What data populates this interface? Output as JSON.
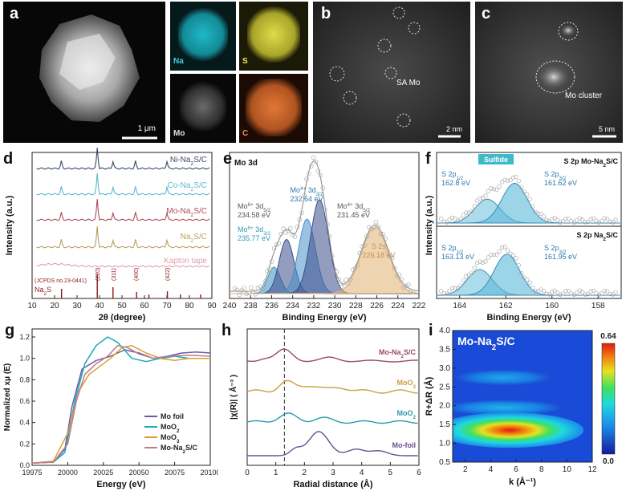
{
  "panels": {
    "a": {
      "label": "a",
      "scale_bar": "1 μm",
      "maps": [
        {
          "element": "Na",
          "color": "#1aa3b0"
        },
        {
          "element": "S",
          "color": "#c9c43a"
        },
        {
          "element": "Mo",
          "color": "#cfcfcf"
        },
        {
          "element": "C",
          "color": "#d06a2a"
        }
      ]
    },
    "b": {
      "label": "b",
      "annotation": "SA Mo",
      "scale_bar": "2 nm"
    },
    "c": {
      "label": "c",
      "annotation": "Mo cluster",
      "scale_bar": "5 nm"
    },
    "d": {
      "label": "d"
    },
    "e": {
      "label": "e"
    },
    "f": {
      "label": "f"
    },
    "g": {
      "label": "g"
    },
    "h": {
      "label": "h"
    },
    "i": {
      "label": "i"
    }
  },
  "chart_data": [
    {
      "id": "d",
      "type": "line",
      "title": "",
      "xlabel": "2θ (degree)",
      "ylabel": "Intensity (a.u.)",
      "xlim": [
        10,
        90
      ],
      "xticks": [
        10,
        20,
        30,
        40,
        50,
        60,
        70,
        80,
        90
      ],
      "series": [
        {
          "name": "Ni-Na2S/C",
          "color": "#3a4a6a",
          "offset": 4
        },
        {
          "name": "Co-Na2S/C",
          "color": "#5bb8cc",
          "offset": 3
        },
        {
          "name": "Mo-Na2S/C",
          "color": "#b04a5a",
          "offset": 2
        },
        {
          "name": "Na2S/C",
          "color": "#b8a060",
          "offset": 1
        },
        {
          "name": "Kapton tape",
          "color": "#e0a0b0",
          "offset": 0
        }
      ],
      "peaks": [
        23,
        39,
        46,
        56,
        70
      ],
      "reference": {
        "name": "JCPDS no.23-0441",
        "compound": "Na2S",
        "color": "#8b1a1a"
      },
      "hkl": [
        {
          "label": "(220)",
          "x": 39
        },
        {
          "label": "(311)",
          "x": 46
        },
        {
          "label": "(400)",
          "x": 56
        },
        {
          "label": "(422)",
          "x": 70
        }
      ]
    },
    {
      "id": "e",
      "type": "area",
      "title": "Mo 3d",
      "xlabel": "Binding Energy (eV)",
      "ylabel": "",
      "xlim": [
        240,
        222
      ],
      "xticks": [
        240,
        238,
        236,
        234,
        232,
        230,
        228,
        226,
        224,
        222
      ],
      "peaks": [
        {
          "label": "Mo6+ 3d3/2",
          "value": "235.77 eV",
          "x": 235.77,
          "height": 0.22,
          "width": 0.6,
          "color": "#3a90c0"
        },
        {
          "label": "Mo6+ 3d5/2",
          "value": "234.58 eV",
          "x": 234.58,
          "height": 0.45,
          "width": 0.7,
          "color": "#3a4d8a"
        },
        {
          "label": "Mo4+ 3d3/2",
          "value": "232.64 eV",
          "x": 232.64,
          "height": 0.62,
          "width": 0.8,
          "color": "#4a8fc8"
        },
        {
          "label": "Mo4+ 3d5/2",
          "value": "231.45 eV",
          "x": 231.45,
          "height": 0.78,
          "width": 0.85,
          "color": "#3a4d8a"
        },
        {
          "label": "S 2s",
          "value": "226.18 eV",
          "x": 226.18,
          "height": 0.55,
          "width": 1.3,
          "color": "#e0b070"
        }
      ]
    },
    {
      "id": "f",
      "type": "area",
      "title": "S 2p",
      "xlabel": "Binding Energy (eV)",
      "ylabel": "Intensity (a.u.)",
      "xlim": [
        165,
        157
      ],
      "xticks": [
        164,
        162,
        160,
        158
      ],
      "badge": "Sulfide",
      "subplots": [
        {
          "sample": "Mo-Na2S/C",
          "peaks": [
            {
              "label": "S 2p1/2",
              "value": "162.8 eV",
              "x": 162.8,
              "height": 0.45
            },
            {
              "label": "S 2p3/2",
              "value": "161.62 eV",
              "x": 161.62,
              "height": 0.75
            }
          ]
        },
        {
          "sample": "Na2S/C",
          "peaks": [
            {
              "label": "S 2p1/2",
              "value": "163.13 eV",
              "x": 163.13,
              "height": 0.5
            },
            {
              "label": "S 2p3/2",
              "value": "161.95 eV",
              "x": 161.95,
              "height": 0.8
            }
          ]
        }
      ]
    },
    {
      "id": "g",
      "type": "line",
      "xlabel": "Energy (eV)",
      "ylabel": "Normalized xμ (E)",
      "xlim": [
        19975,
        20100
      ],
      "ylim": [
        0.0,
        1.2
      ],
      "xticks": [
        19975,
        20000,
        20025,
        20050,
        20075,
        20100
      ],
      "yticks": [
        0.0,
        0.2,
        0.4,
        0.6,
        0.8,
        1.0,
        1.2
      ],
      "series": [
        {
          "name": "Mo foil",
          "color": "#6a5aa8",
          "x": [
            19975,
            19990,
            19998,
            20003,
            20010,
            20020,
            20030,
            20040,
            20050,
            20060,
            20070,
            20080,
            20090,
            20100
          ],
          "y": [
            0.02,
            0.03,
            0.15,
            0.55,
            0.9,
            0.98,
            1.02,
            1.08,
            1.05,
            1.0,
            1.02,
            1.05,
            1.06,
            1.05
          ]
        },
        {
          "name": "MoO2",
          "color": "#1aaab8",
          "x": [
            19975,
            19990,
            19998,
            20005,
            20012,
            20020,
            20028,
            20035,
            20045,
            20055,
            20065,
            20075,
            20085,
            20100
          ],
          "y": [
            0.02,
            0.03,
            0.12,
            0.6,
            0.95,
            1.12,
            1.2,
            1.15,
            1.0,
            0.97,
            1.0,
            1.02,
            1.0,
            1.0
          ]
        },
        {
          "name": "MoO3",
          "color": "#d8a030",
          "x": [
            19975,
            19990,
            20000,
            20008,
            20015,
            20022,
            20030,
            20038,
            20045,
            20055,
            20065,
            20075,
            20085,
            20100
          ],
          "y": [
            0.02,
            0.04,
            0.3,
            0.7,
            0.85,
            0.92,
            1.0,
            1.1,
            1.12,
            1.05,
            1.0,
            0.98,
            1.0,
            1.0
          ]
        },
        {
          "name": "Mo-Na2S/C",
          "color": "#c07a90",
          "x": [
            19975,
            19990,
            20000,
            20006,
            20012,
            20020,
            20028,
            20035,
            20042,
            20050,
            20060,
            20070,
            20085,
            20100
          ],
          "y": [
            0.02,
            0.03,
            0.2,
            0.6,
            0.85,
            0.95,
            1.02,
            1.12,
            1.1,
            1.04,
            1.0,
            1.02,
            1.03,
            1.02
          ]
        }
      ]
    },
    {
      "id": "h",
      "type": "line",
      "xlabel": "Radial distance (Å)",
      "ylabel": "|χ(R)| ( Å⁻³ )",
      "xlim": [
        0,
        6
      ],
      "xticks": [
        0,
        1,
        2,
        3,
        4,
        5,
        6
      ],
      "dashed_x": 1.3,
      "series": [
        {
          "name": "Mo-Na2S/C",
          "color": "#9a4a6a",
          "offset": 3
        },
        {
          "name": "MoO3",
          "color": "#c8a040",
          "offset": 2
        },
        {
          "name": "MoO2",
          "color": "#2a9aa8",
          "offset": 1
        },
        {
          "name": "Mo-foil",
          "color": "#6a5090",
          "offset": 0
        }
      ]
    },
    {
      "id": "i",
      "type": "heatmap",
      "title": "Mo-Na2S/C",
      "xlabel": "k (Å⁻¹)",
      "ylabel": "R+ΔR (Å)",
      "xlim": [
        1,
        12
      ],
      "ylim": [
        0.5,
        4.0
      ],
      "xticks": [
        2,
        4,
        6,
        8,
        10,
        12
      ],
      "yticks": [
        0.5,
        1.0,
        1.5,
        2.0,
        2.5,
        3.0,
        3.5,
        4.0
      ],
      "colorbar": {
        "min": "0.0",
        "max": "0.64"
      },
      "maximum": {
        "k": 5.5,
        "R": 1.35
      }
    }
  ]
}
